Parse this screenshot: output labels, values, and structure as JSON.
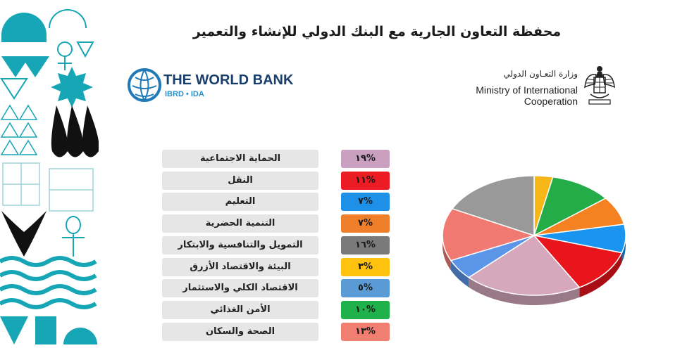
{
  "title": "محفظة التعاون الجارية مع البنك الدولي للإنشاء والتعمير",
  "world_bank_logo": {
    "name": "THE WORLD BANK",
    "sub": "IBRD • IDA"
  },
  "ministry_logo": {
    "arabic_name": "وزارة التعـاون الدولي",
    "english_line1": "Ministry of International",
    "english_line2": "Cooperation",
    "emblem_icon": "egypt-eagle-emblem"
  },
  "chart_data": {
    "type": "pie",
    "style": "3d",
    "title": "",
    "legend_placement": "left",
    "categories": [
      "الحماية الاجتماعية",
      "النقل",
      "التعليم",
      "التنمية الحضرية",
      "التمويل والتنافسية والابتكار",
      "البيئة والاقتصاد الأزرق",
      "الاقتصاد الكلي والاستثمار",
      "الأمن الغذائي",
      "الصحة والسكان"
    ],
    "values": [
      19,
      11,
      7,
      7,
      16,
      3,
      5,
      10,
      13
    ],
    "labels": [
      "%١٩",
      "%١١",
      "%٧",
      "%٧",
      "%١٦",
      "%٣",
      "%٥",
      "%١٠",
      "%١٣"
    ],
    "colors": [
      "#c9a0c0",
      "#ec1c24",
      "#1e90e8",
      "#f07f2c",
      "#7a7a7a",
      "#ffc20e",
      "#5b9bd5",
      "#21b14b",
      "#f07f72"
    ],
    "pie_colors": [
      "#d6a8bc",
      "#e8151c",
      "#1a95ef",
      "#f58220",
      "#999999",
      "#f7b718",
      "#5b95e8",
      "#23ac48",
      "#f07a72"
    ],
    "pie_order": [
      5,
      7,
      3,
      2,
      1,
      0,
      6,
      8,
      4
    ]
  }
}
